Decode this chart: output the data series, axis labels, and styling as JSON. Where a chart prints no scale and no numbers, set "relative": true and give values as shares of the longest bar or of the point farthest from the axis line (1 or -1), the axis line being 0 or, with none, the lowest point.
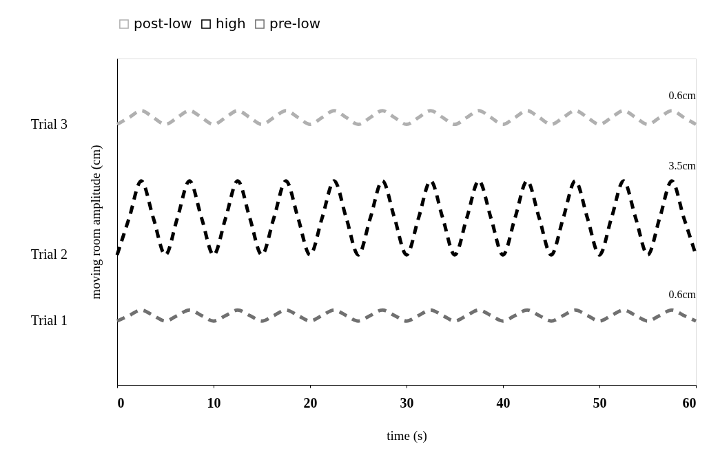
{
  "chart_data": {
    "type": "line",
    "relative": true,
    "xlabel": "time (s)",
    "ylabel": "moving room amplitude (cm)",
    "xlim": [
      0,
      60
    ],
    "xticks": [
      0,
      10,
      20,
      30,
      40,
      50,
      60
    ],
    "grid": false,
    "legend": "top",
    "line_style": "dashed",
    "x": [
      0,
      1.25,
      2.5,
      3.75,
      5,
      6.25,
      7.5,
      8.75,
      10,
      11.25,
      12.5,
      13.75,
      15,
      16.25,
      17.5,
      18.75,
      20,
      21.25,
      22.5,
      23.75,
      25,
      26.25,
      27.5,
      28.75,
      30,
      31.25,
      32.5,
      33.75,
      35,
      36.25,
      37.5,
      38.75,
      40,
      41.25,
      42.5,
      43.75,
      45,
      46.25,
      47.5,
      48.75,
      50,
      51.25,
      52.5,
      53.75,
      55,
      56.25,
      57.5,
      58.75,
      60
    ],
    "series": [
      {
        "name": "post-low",
        "color": "#b0b0b0",
        "values": [
          0.95,
          0.975,
          1.0,
          0.975,
          0.95,
          0.975,
          1.0,
          0.975,
          0.95,
          0.975,
          1.0,
          0.975,
          0.95,
          0.975,
          1.0,
          0.975,
          0.95,
          0.975,
          1.0,
          0.975,
          0.95,
          0.975,
          1.0,
          0.975,
          0.95,
          0.975,
          1.0,
          0.975,
          0.95,
          0.975,
          1.0,
          0.975,
          0.95,
          0.975,
          1.0,
          0.975,
          0.95,
          0.975,
          1.0,
          0.975,
          0.95,
          0.975,
          1.0,
          0.975,
          0.95,
          0.975,
          1.0,
          0.975,
          0.95
        ]
      },
      {
        "name": "high",
        "color": "#000000",
        "values": [
          0.474,
          0.609,
          0.744,
          0.609,
          0.474,
          0.609,
          0.744,
          0.609,
          0.474,
          0.609,
          0.744,
          0.609,
          0.474,
          0.609,
          0.744,
          0.609,
          0.474,
          0.609,
          0.744,
          0.609,
          0.474,
          0.609,
          0.744,
          0.609,
          0.474,
          0.609,
          0.744,
          0.609,
          0.474,
          0.609,
          0.744,
          0.609,
          0.474,
          0.609,
          0.744,
          0.609,
          0.474,
          0.609,
          0.744,
          0.609,
          0.474,
          0.609,
          0.744,
          0.609,
          0.474,
          0.609,
          0.744,
          0.609,
          0.474
        ]
      },
      {
        "name": "pre-low",
        "color": "#707070",
        "values": [
          0.233,
          0.253,
          0.273,
          0.253,
          0.233,
          0.253,
          0.273,
          0.253,
          0.233,
          0.253,
          0.273,
          0.253,
          0.233,
          0.253,
          0.273,
          0.253,
          0.233,
          0.253,
          0.273,
          0.253,
          0.233,
          0.253,
          0.273,
          0.253,
          0.233,
          0.253,
          0.273,
          0.253,
          0.233,
          0.253,
          0.273,
          0.253,
          0.233,
          0.253,
          0.273,
          0.253,
          0.233,
          0.253,
          0.273,
          0.253,
          0.233,
          0.253,
          0.273,
          0.253,
          0.233,
          0.253,
          0.273,
          0.253,
          0.233
        ]
      }
    ],
    "annotations": [
      "Trial 3",
      "Trial 2",
      "Trial 1",
      "0.6cm",
      "3.5cm",
      "0.6cm"
    ]
  }
}
